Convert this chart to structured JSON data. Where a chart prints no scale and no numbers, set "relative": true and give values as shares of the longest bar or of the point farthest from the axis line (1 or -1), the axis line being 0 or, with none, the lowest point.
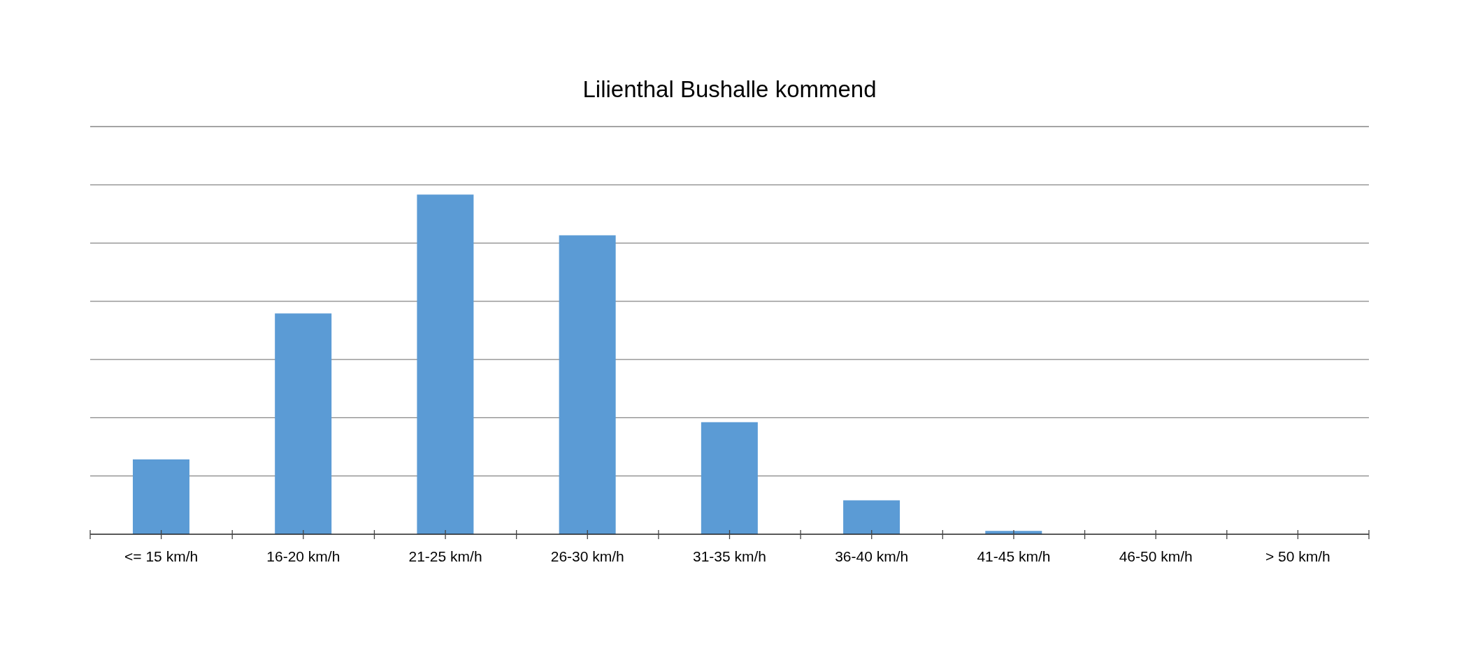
{
  "chart_data": {
    "type": "bar",
    "title": "Lilienthal Bushalle kommend",
    "categories": [
      "<= 15 km/h",
      "16-20 km/h",
      "21-25 km/h",
      "26-30 km/h",
      "31-35 km/h",
      "36-40 km/h",
      "41-45 km/h",
      "46-50 km/h",
      "> 50 km/h"
    ],
    "values": [
      0.22,
      0.65,
      1,
      0.88,
      0.33,
      0.1,
      0.01,
      0,
      0
    ],
    "color": "#5b9bd5",
    "relative": true,
    "grid": "y"
  }
}
